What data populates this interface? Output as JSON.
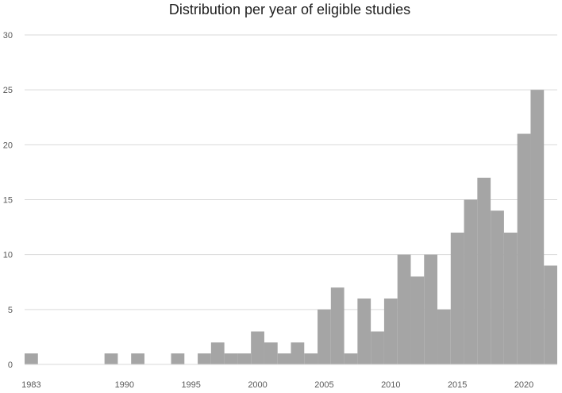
{
  "chart_data": {
    "type": "bar",
    "title": "Distribution per year of eligible studies",
    "xlabel": "",
    "ylabel": "",
    "x": [
      1983,
      1984,
      1985,
      1986,
      1987,
      1988,
      1989,
      1990,
      1991,
      1992,
      1993,
      1994,
      1995,
      1996,
      1997,
      1998,
      1999,
      2000,
      2001,
      2002,
      2003,
      2004,
      2005,
      2006,
      2007,
      2008,
      2009,
      2010,
      2011,
      2012,
      2013,
      2014,
      2015,
      2016,
      2017,
      2018,
      2019,
      2020,
      2021,
      2022
    ],
    "values": [
      1,
      0,
      0,
      0,
      0,
      0,
      1,
      0,
      1,
      0,
      0,
      1,
      0,
      1,
      2,
      1,
      1,
      3,
      2,
      1,
      2,
      1,
      5,
      7,
      1,
      6,
      3,
      6,
      10,
      8,
      10,
      5,
      12,
      15,
      17,
      14,
      12,
      21,
      25,
      9
    ],
    "x_tick_labels": [
      "1983",
      "1990",
      "1995",
      "2000",
      "2005",
      "2010",
      "2015",
      "2020"
    ],
    "x_tick_values": [
      1983,
      1990,
      1995,
      2000,
      2005,
      2010,
      2015,
      2020
    ],
    "y_ticks": [
      0,
      5,
      10,
      15,
      20,
      25,
      30
    ],
    "ylim": [
      0,
      30
    ],
    "grid": true,
    "legend": "none",
    "bar_color": "#a5a5a5",
    "grid_color": "#d9d9d9"
  }
}
